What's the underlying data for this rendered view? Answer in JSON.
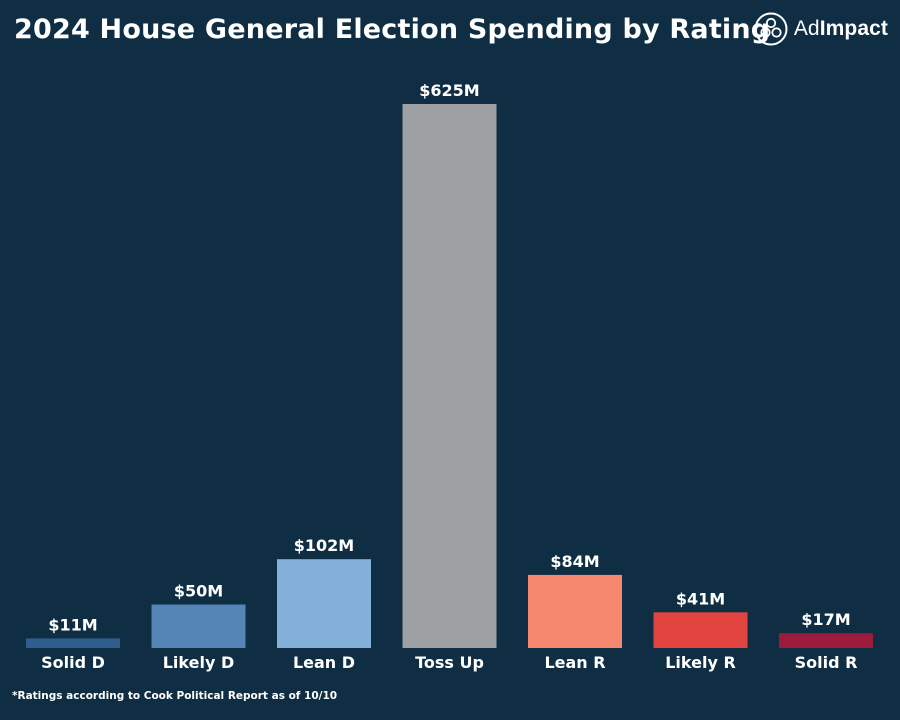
{
  "title": "2024 House General Election Spending by Rating",
  "logo": {
    "text_light": "Ad",
    "text_bold": "Impact",
    "icon": "adimpact-logo-icon"
  },
  "footnote": "*Ratings according to Cook Political Report as of 10/10",
  "colors": {
    "background": "#0f2d43",
    "solid_d": "#2f5e8e",
    "likely_d": "#5585b7",
    "lean_d": "#82b0d9",
    "toss_up": "#9da1a3",
    "lean_r": "#f6876f",
    "likely_r": "#e2443f",
    "solid_r": "#9b1b3d"
  },
  "chart_data": {
    "type": "bar",
    "title": "2024 House General Election Spending by Rating",
    "categories": [
      "Solid D",
      "Likely D",
      "Lean D",
      "Toss Up",
      "Lean R",
      "Likely R",
      "Solid R"
    ],
    "values": [
      11,
      50,
      102,
      625,
      84,
      41,
      17
    ],
    "value_labels": [
      "$11M",
      "$50M",
      "$102M",
      "$625M",
      "$84M",
      "$41M",
      "$17M"
    ],
    "units": "millions USD",
    "bar_colors": [
      "#2f5e8e",
      "#5585b7",
      "#82b0d9",
      "#9da1a3",
      "#f6876f",
      "#e2443f",
      "#9b1b3d"
    ],
    "xlabel": "",
    "ylabel": "",
    "ylim": [
      0,
      625
    ],
    "grid": false,
    "legend": "none"
  }
}
